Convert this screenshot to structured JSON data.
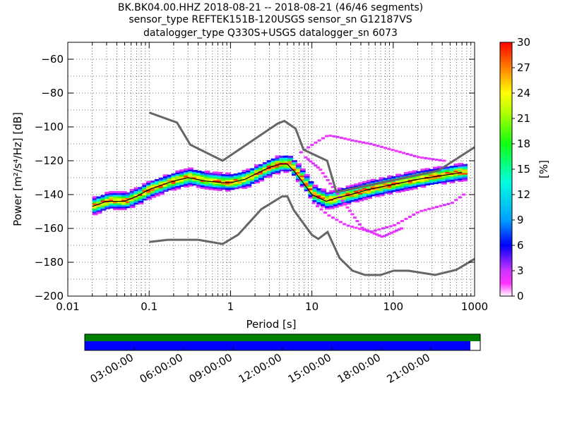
{
  "title": {
    "line1": "BK.BK04.00.HHZ   2018-08-21 -- 2018-08-21  (46/46 segments)",
    "line2": "sensor_type REFTEK151B-120USGS sensor_sn G12187VS",
    "line3": "datalogger_type Q330S+USGS datalogger_sn 6073"
  },
  "chart_data": [
    {
      "type": "heatmap",
      "xlabel": "Period [s]",
      "ylabel": "Power [m²/s⁴/Hz] [dB]",
      "x_scale": "log",
      "xlim": [
        0.01,
        1000
      ],
      "ylim": [
        -200,
        -50
      ],
      "x_ticks": [
        0.01,
        0.1,
        1,
        10,
        100,
        1000
      ],
      "x_tick_labels": [
        "0.01",
        "0.1",
        "1",
        "10",
        "100",
        "1000"
      ],
      "y_ticks": [
        -200,
        -180,
        -160,
        -140,
        -120,
        -100,
        -80,
        -60
      ],
      "y_tick_labels": [
        "−200",
        "−180",
        "−160",
        "−140",
        "−120",
        "−100",
        "−80",
        "−60"
      ],
      "colorbar": {
        "label": "[%]",
        "range": [
          0,
          30
        ],
        "ticks": [
          0,
          3,
          6,
          9,
          12,
          15,
          18,
          21,
          24,
          27,
          30
        ],
        "colormap": "pqlx"
      },
      "noise_models": {
        "upper": {
          "x": [
            0.1,
            0.22,
            0.32,
            0.8,
            3.8,
            4.6,
            6.3,
            7.9,
            15.4,
            20,
            354,
            1000
          ],
          "y": [
            -91.5,
            -97.4,
            -110.5,
            -120,
            -98,
            -96.5,
            -101,
            -113.5,
            -120,
            -138.5,
            -126,
            -112
          ]
        },
        "lower": {
          "x": [
            0.1,
            0.17,
            0.4,
            0.8,
            1.24,
            2.4,
            4.3,
            5,
            6,
            10,
            12,
            15.6,
            21.9,
            31.6,
            45,
            70,
            101,
            154,
            328,
            600,
            1000
          ],
          "y": [
            -168,
            -166.7,
            -166.7,
            -169.2,
            -163.7,
            -148.6,
            -141.1,
            -141.1,
            -149.2,
            -163.8,
            -166.2,
            -162.1,
            -177.5,
            -185,
            -187.5,
            -187.5,
            -185,
            -185,
            -187.5,
            -184.4,
            -178
          ]
        }
      },
      "mode_curve": {
        "x": [
          0.02,
          0.03,
          0.05,
          0.07,
          0.1,
          0.15,
          0.2,
          0.3,
          0.5,
          0.8,
          1,
          1.5,
          2,
          3,
          4,
          5,
          6,
          7,
          10,
          15,
          20,
          30,
          50,
          100,
          200,
          500,
          700
        ],
        "y": [
          -147,
          -144,
          -144,
          -141,
          -137,
          -134,
          -132,
          -130,
          -132,
          -133,
          -133,
          -131,
          -128,
          -124,
          -122,
          -122,
          -126,
          -130,
          -140,
          -144,
          -142,
          -140,
          -137,
          -134,
          -131,
          -128,
          -127
        ]
      },
      "spread_curves": [
        {
          "x": [
            7,
            10,
            15,
            20,
            30,
            50,
            100,
            200,
            400
          ],
          "y": [
            -115,
            -110,
            -105,
            -106,
            -108,
            -110,
            -114,
            -118,
            -120
          ]
        },
        {
          "x": [
            8,
            12,
            20,
            40,
            70,
            120
          ],
          "y": [
            -118,
            -125,
            -140,
            -160,
            -165,
            -160
          ]
        },
        {
          "x": [
            10,
            15,
            25,
            50,
            100,
            200,
            500,
            700
          ],
          "y": [
            -145,
            -152,
            -158,
            -162,
            -158,
            -150,
            -145,
            -140
          ]
        }
      ]
    },
    {
      "type": "bar",
      "title": "",
      "x_tick_labels": [
        "03:00:00",
        "06:00:00",
        "09:00:00",
        "12:00:00",
        "15:00:00",
        "18:00:00",
        "21:00:00"
      ],
      "data_coverage_fraction": 1.0,
      "segment_coverage_fraction": 0.975,
      "colors": {
        "data": "#008000",
        "segments": "#0000ff"
      }
    }
  ]
}
